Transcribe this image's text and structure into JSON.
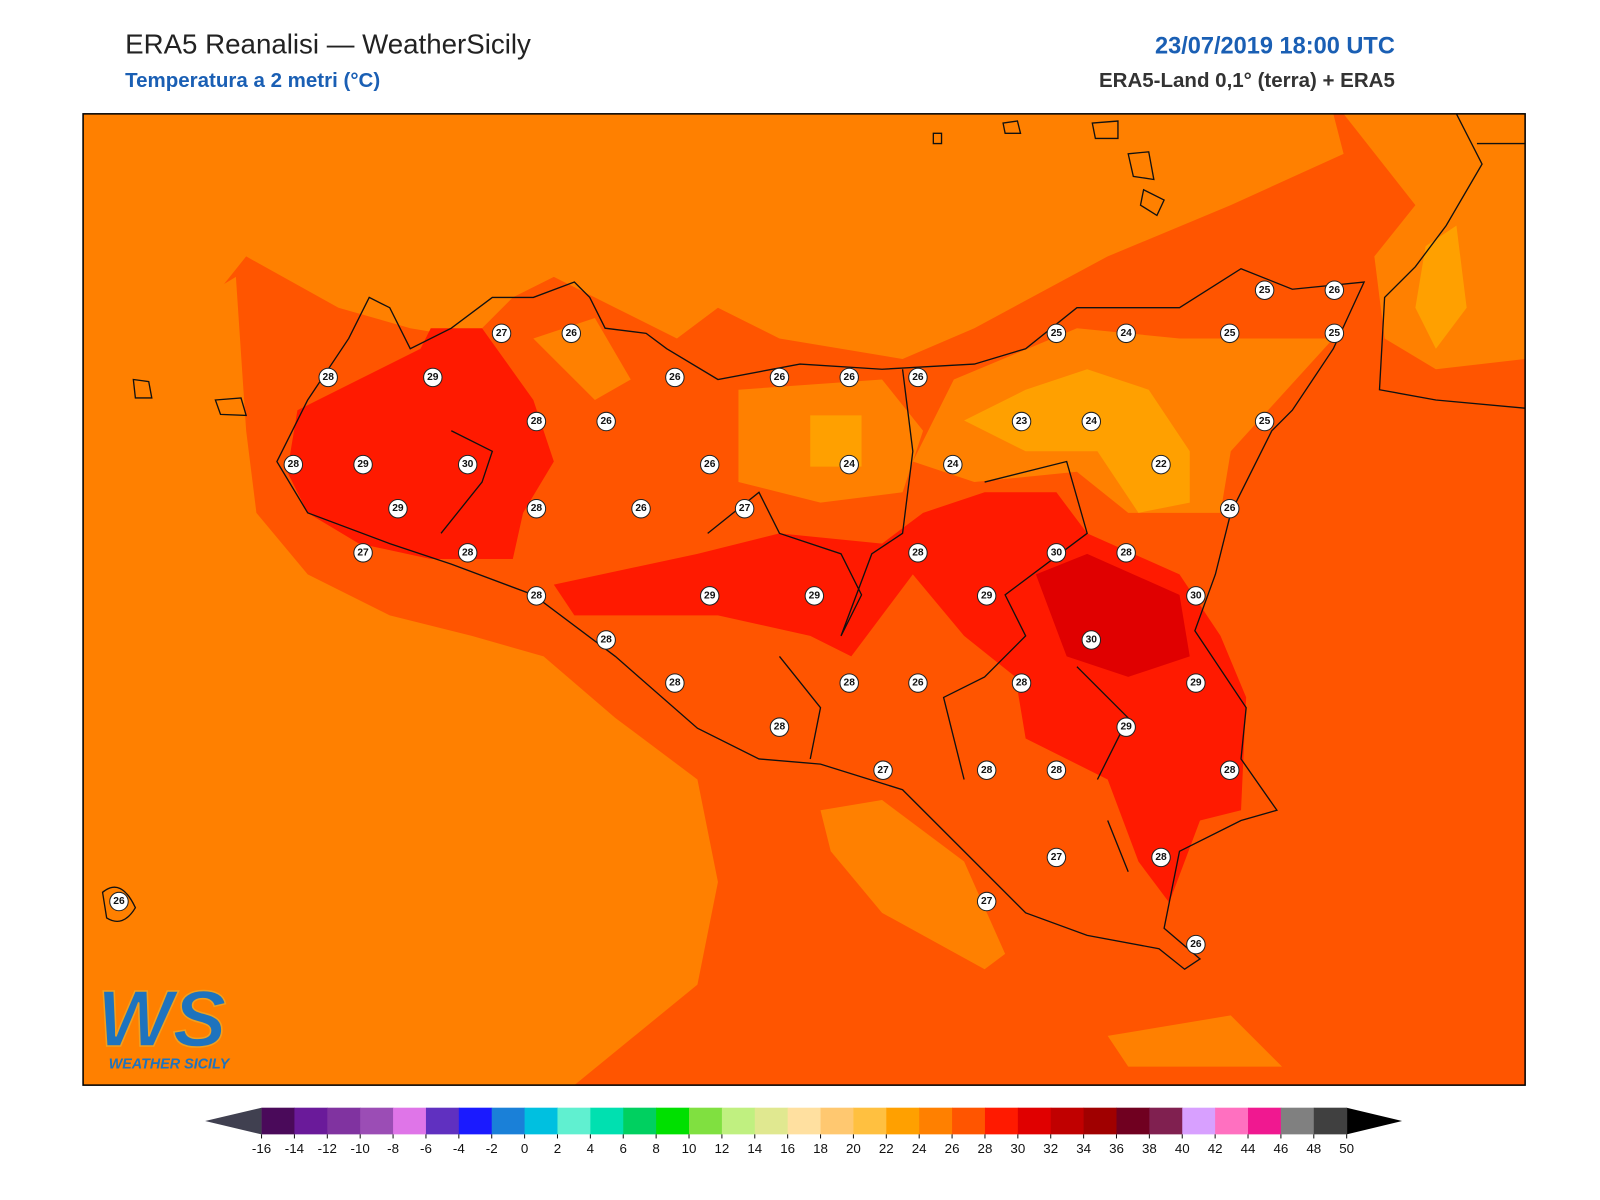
{
  "header": {
    "title": "ERA5 Reanalisi — WeatherSicily",
    "subtitle": "Temperatura a 2 metri (°C)",
    "datetime": "23/07/2019 18:00 UTC",
    "source": "ERA5-Land 0,1° (terra) + ERA5"
  },
  "stations": [
    27,
    26,
    28,
    29,
    26,
    26,
    26,
    26,
    25,
    26,
    25,
    24,
    25,
    25,
    28,
    26,
    23,
    24,
    25,
    28,
    29,
    30,
    26,
    24,
    24,
    22,
    29,
    28,
    26,
    27,
    26,
    27,
    28,
    28,
    30,
    28,
    28,
    29,
    29,
    29,
    30,
    28,
    30,
    28,
    28,
    26,
    28,
    29,
    28,
    29,
    27,
    28,
    28,
    28,
    27,
    28,
    27,
    26,
    26
  ],
  "colorbar": {
    "ticks": [
      -16,
      -14,
      -12,
      -10,
      -8,
      -6,
      -4,
      -2,
      0,
      2,
      4,
      6,
      8,
      10,
      12,
      14,
      16,
      18,
      20,
      22,
      24,
      26,
      28,
      30,
      32,
      34,
      36,
      38,
      40,
      42,
      44,
      46,
      48,
      50
    ],
    "colors": [
      "#4a0a5a",
      "#6a1a9a",
      "#8033a0",
      "#9b4db5",
      "#df75e8",
      "#6030c0",
      "#1a1aff",
      "#1a80d8",
      "#00c0e0",
      "#60f0d0",
      "#00e0b0",
      "#00d060",
      "#00e000",
      "#80e040",
      "#c0f080",
      "#e0e890",
      "#ffe0a0",
      "#ffc870",
      "#ffc040",
      "#ffa000",
      "#ff8000",
      "#ff5500",
      "#ff1a00",
      "#e00000",
      "#c00000",
      "#a00000",
      "#700020",
      "#802050",
      "#d8a0ff",
      "#ff70c0",
      "#f01890",
      "#808080",
      "#404040"
    ],
    "under_color": "#404050",
    "over_color": "#000000"
  },
  "logo": {
    "mark": "WS",
    "text": "WEATHER SICILY"
  }
}
